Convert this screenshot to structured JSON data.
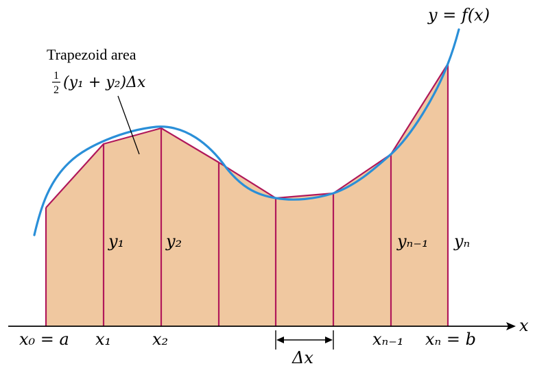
{
  "colors": {
    "fill": "#F0C8A0",
    "edges": "#B0185A",
    "curve": "#2A8FD8",
    "axis": "#000000"
  },
  "curve_label": "y = f(x)",
  "annotation": {
    "title": "Trapezoid area",
    "formula_half_num": "1",
    "formula_half_den": "2",
    "formula_rest": "(y₁ + y₂)Δx"
  },
  "axis_label": "x",
  "x_labels": [
    "x₀ = a",
    "x₁",
    "x₂",
    "xₙ₋₁",
    "xₙ = b"
  ],
  "y_labels": [
    "y₁",
    "y₂",
    "yₙ₋₁",
    "yₙ"
  ],
  "delta_label": "Δx"
}
